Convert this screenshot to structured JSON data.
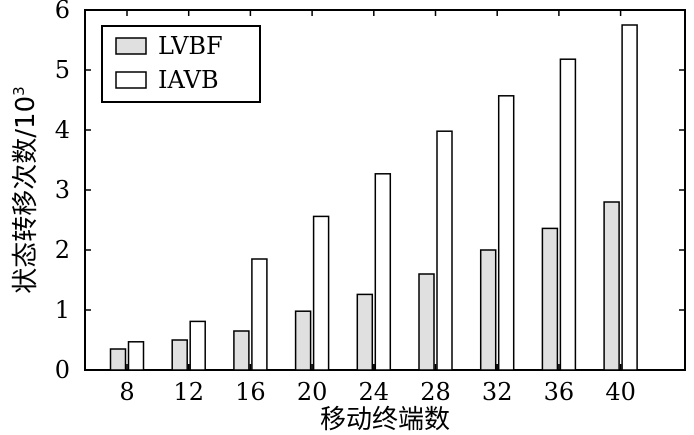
{
  "chart_data": {
    "type": "bar",
    "title": "",
    "xlabel": "移动终端数",
    "ylabel": "状态转移次数/10",
    "ylabel_superscript": "3",
    "categories": [
      "8",
      "12",
      "16",
      "20",
      "24",
      "28",
      "32",
      "36",
      "40"
    ],
    "series": [
      {
        "name": "LVBF",
        "values": [
          0.35,
          0.5,
          0.65,
          0.98,
          1.26,
          1.6,
          2.0,
          2.36,
          2.8
        ],
        "color": "#e0e0e0"
      },
      {
        "name": "IAVB",
        "values": [
          0.47,
          0.81,
          1.85,
          2.56,
          3.27,
          3.98,
          4.57,
          5.18,
          5.75
        ],
        "color": "#ffffff"
      }
    ],
    "ylim": [
      0,
      6
    ],
    "yticks": [
      "0",
      "1",
      "2",
      "3",
      "4",
      "5",
      "6"
    ],
    "legend_position": "top-left",
    "grid": false
  }
}
